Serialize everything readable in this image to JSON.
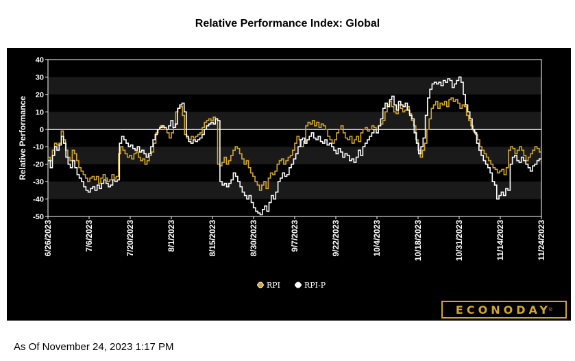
{
  "title": "Relative Performance Index: Global",
  "asof": "As Of November 24, 2023 1:17 PM",
  "logo": {
    "text": "ECONODAY",
    "reg": "®"
  },
  "colors": {
    "rpi": "#d4a62a",
    "rpi_p": "#ffffff",
    "background": "#000000",
    "band": "#1a1a1a",
    "zero_line": "#ffffff"
  },
  "chart_data": {
    "type": "line",
    "title": "",
    "xlabel": "",
    "ylabel": "Relative Performance",
    "ylim": [
      -50,
      40
    ],
    "yticks": [
      40,
      30,
      20,
      10,
      0,
      -10,
      -20,
      -30,
      -40,
      -50
    ],
    "xtick_labels": [
      "6/26/2023",
      "7/6/2023",
      "7/20/2023",
      "8/1/2023",
      "8/15/2023",
      "8/30/2023",
      "9/7/2023",
      "9/22/2023",
      "10/4/2023",
      "10/18/2023",
      "10/31/2023",
      "11/14/2023",
      "11/24/2023"
    ],
    "grid": "alternating horizontal bands",
    "legend_position": "bottom-center",
    "series": [
      {
        "name": "RPI",
        "color": "#d4a62a",
        "values": [
          -16,
          -18,
          -12,
          -8,
          -9,
          -8,
          -1,
          -6,
          -12,
          -16,
          -18,
          -12,
          -14,
          -18,
          -22,
          -24,
          -26,
          -28,
          -30,
          -28,
          -27,
          -29,
          -27,
          -31,
          -28,
          -26,
          -28,
          -30,
          -29,
          -26,
          -28,
          -27,
          -14,
          -10,
          -12,
          -14,
          -16,
          -15,
          -17,
          -14,
          -13,
          -16,
          -18,
          -17,
          -20,
          -18,
          -15,
          -13,
          -8,
          -2,
          0,
          2,
          1,
          0,
          -2,
          -5,
          -2,
          1,
          10,
          12,
          13,
          8,
          -3,
          -5,
          -6,
          -4,
          -5,
          -4,
          -3,
          -2,
          1,
          4,
          5,
          6,
          5,
          7,
          6,
          -20,
          -21,
          -19,
          -16,
          -20,
          -18,
          -15,
          -12,
          -10,
          -11,
          -14,
          -17,
          -20,
          -18,
          -22,
          -25,
          -27,
          -30,
          -32,
          -35,
          -32,
          -30,
          -34,
          -28,
          -25,
          -26,
          -24,
          -20,
          -18,
          -17,
          -20,
          -18,
          -16,
          -15,
          -12,
          -8,
          -4,
          -6,
          -10,
          -7,
          2,
          4,
          3,
          5,
          2,
          4,
          1,
          3,
          2,
          0,
          -4,
          -6,
          -8,
          -6,
          -2,
          0,
          2,
          -2,
          -5,
          -6,
          -4,
          -8,
          -6,
          -4,
          -7,
          -2,
          0,
          1,
          -1,
          0,
          2,
          1,
          0,
          2,
          3,
          5,
          10,
          14,
          16,
          13,
          10,
          9,
          14,
          12,
          10,
          11,
          13,
          9,
          5,
          2,
          -6,
          -12,
          -16,
          -12,
          -8,
          0,
          6,
          12,
          14,
          16,
          12,
          15,
          14,
          16,
          13,
          17,
          18,
          16,
          17,
          15,
          12,
          14,
          13,
          8,
          5,
          2,
          -1,
          -3,
          -6,
          -10,
          -12,
          -14,
          -16,
          -18,
          -20,
          -22,
          -23,
          -25,
          -24,
          -23,
          -26,
          -22,
          -12,
          -10,
          -11,
          -14,
          -12,
          -10,
          -12,
          -15,
          -18,
          -16,
          -14,
          -12,
          -10,
          -11,
          -13
        ]
      },
      {
        "name": "RPI-P",
        "color": "#ffffff",
        "values": [
          -18,
          -22,
          -15,
          -10,
          -12,
          -9,
          -4,
          -8,
          -16,
          -20,
          -22,
          -18,
          -22,
          -26,
          -28,
          -30,
          -33,
          -35,
          -36,
          -34,
          -33,
          -35,
          -32,
          -34,
          -31,
          -29,
          -31,
          -33,
          -32,
          -29,
          -30,
          -29,
          -8,
          -4,
          -6,
          -8,
          -10,
          -9,
          -11,
          -12,
          -10,
          -13,
          -12,
          -14,
          -16,
          -14,
          -10,
          -6,
          -3,
          0,
          1,
          2,
          1,
          0,
          2,
          5,
          1,
          3,
          12,
          14,
          15,
          10,
          -4,
          -7,
          -8,
          -6,
          -7,
          -6,
          -5,
          -3,
          0,
          2,
          3,
          4,
          3,
          6,
          5,
          -30,
          -32,
          -31,
          -33,
          -31,
          -29,
          -25,
          -27,
          -30,
          -33,
          -36,
          -38,
          -40,
          -38,
          -42,
          -45,
          -47,
          -48,
          -49,
          -46,
          -44,
          -47,
          -42,
          -38,
          -40,
          -36,
          -30,
          -28,
          -25,
          -27,
          -26,
          -22,
          -20,
          -17,
          -14,
          -10,
          -6,
          -5,
          -8,
          -6,
          -4,
          -2,
          -5,
          -6,
          -4,
          -7,
          -8,
          -6,
          -9,
          -8,
          -10,
          -12,
          -14,
          -11,
          -13,
          -16,
          -14,
          -15,
          -18,
          -17,
          -19,
          -16,
          -12,
          -15,
          -10,
          -8,
          -6,
          -4,
          -2,
          0,
          -2,
          2,
          6,
          12,
          15,
          13,
          17,
          19,
          14,
          11,
          16,
          14,
          13,
          15,
          11,
          8,
          6,
          -2,
          -8,
          -14,
          -10,
          -5,
          8,
          18,
          23,
          26,
          27,
          26,
          27,
          25,
          28,
          27,
          29,
          28,
          24,
          26,
          28,
          30,
          27,
          20,
          14,
          10,
          6,
          0,
          -2,
          -8,
          -12,
          -15,
          -18,
          -20,
          -22,
          -25,
          -30,
          -32,
          -40,
          -38,
          -36,
          -38,
          -34,
          -35,
          -20,
          -16,
          -15,
          -18,
          -19,
          -16,
          -18,
          -20,
          -22,
          -24,
          -21,
          -20,
          -18,
          -17
        ]
      }
    ]
  }
}
